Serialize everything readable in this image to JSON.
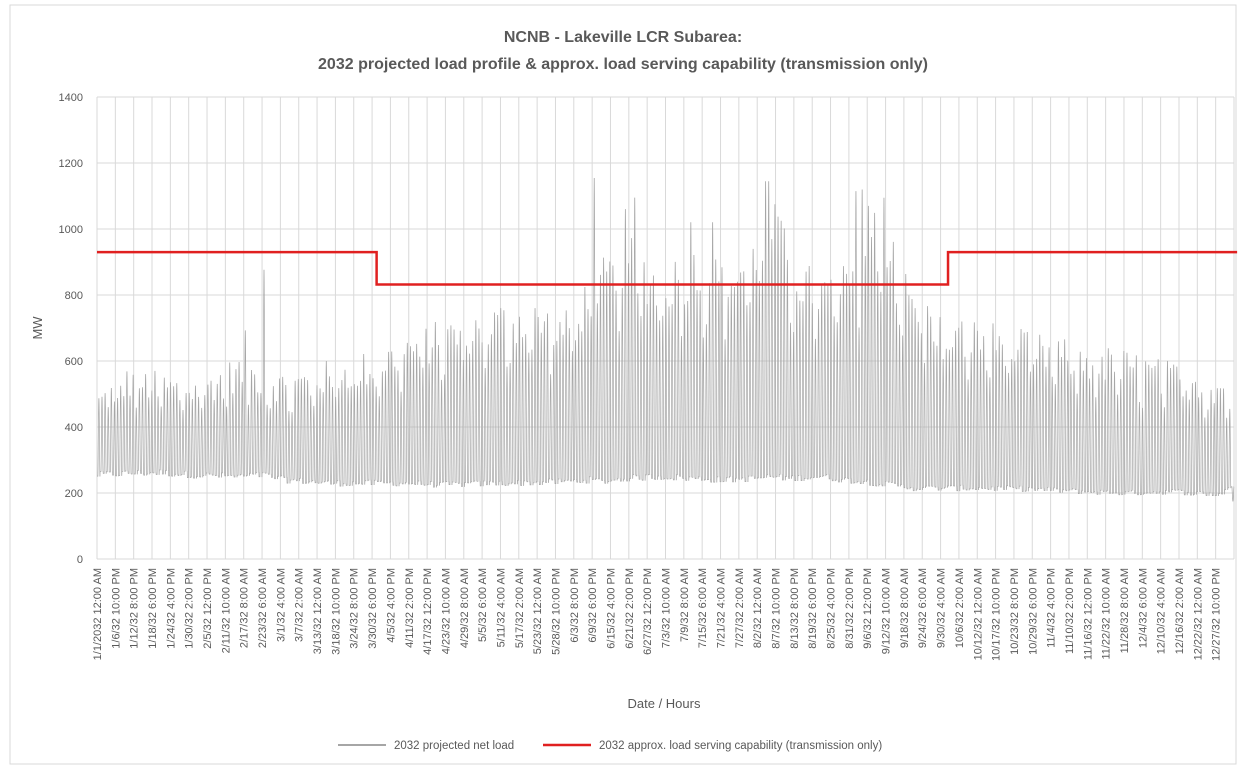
{
  "chart_data": {
    "type": "line",
    "title": "NCNB - Lakeville LCR Subarea:",
    "subtitle": "2032 projected load profile & approx. load serving capability (transmission only)",
    "xlabel": "Date / Hours",
    "ylabel": "MW",
    "ylim": [
      0,
      1400
    ],
    "yticks": [
      0,
      200,
      400,
      600,
      800,
      1000,
      1200,
      1400
    ],
    "grid": true,
    "legend_position": "bottom",
    "xlim_hours": [
      0,
      8759
    ],
    "x_tick_labels": [
      "1/1/2032 12:00 AM",
      "1/6/32 10:00 PM",
      "1/12/32 8:00 PM",
      "1/18/32 6:00 PM",
      "1/24/32 4:00 PM",
      "1/30/32 2:00 PM",
      "2/5/32 12:00 PM",
      "2/11/32 10:00 AM",
      "2/17/32 8:00 AM",
      "2/23/32 6:00 AM",
      "3/1/32 4:00 AM",
      "3/7/32 2:00 AM",
      "3/13/32 12:00 AM",
      "3/18/32 10:00 PM",
      "3/24/32 8:00 PM",
      "3/30/32 6:00 PM",
      "4/5/32 4:00 PM",
      "4/11/32 2:00 PM",
      "4/17/32 12:00 PM",
      "4/23/32 10:00 AM",
      "4/29/32 8:00 AM",
      "5/5/32 6:00 AM",
      "5/11/32 4:00 AM",
      "5/17/32 2:00 AM",
      "5/23/32 12:00 AM",
      "5/28/32 10:00 PM",
      "6/3/32 8:00 PM",
      "6/9/32 6:00 PM",
      "6/15/32 4:00 PM",
      "6/21/32 2:00 PM",
      "6/27/32 12:00 PM",
      "7/3/32 10:00 AM",
      "7/9/32 8:00 AM",
      "7/15/32 6:00 AM",
      "7/21/32 4:00 AM",
      "7/27/32 2:00 AM",
      "8/2/32 12:00 AM",
      "8/7/32 10:00 PM",
      "8/13/32 8:00 PM",
      "8/19/32 6:00 PM",
      "8/25/32 4:00 PM",
      "8/31/32 2:00 PM",
      "9/6/32 12:00 PM",
      "9/12/32 10:00 AM",
      "9/18/32 8:00 AM",
      "9/24/32 6:00 AM",
      "9/30/32 4:00 AM",
      "10/6/32 2:00 AM",
      "10/12/32 12:00 AM",
      "10/17/32 10:00 PM",
      "10/23/32 8:00 PM",
      "10/29/32 6:00 PM",
      "11/4/32 4:00 PM",
      "11/10/32 2:00 PM",
      "11/16/32 12:00 PM",
      "11/22/32 10:00 AM",
      "11/28/32 8:00 AM",
      "12/4/32 6:00 AM",
      "12/10/32 4:00 AM",
      "12/16/32 2:00 AM",
      "12/22/32 12:00 AM",
      "12/27/32 10:00 PM"
    ],
    "series": [
      {
        "name": "2032 projected net load",
        "color": "#a6a6a6",
        "style": "hourly profile; daily min/max envelope listed by day",
        "daily_envelope": {
          "x_unit": "days from 1/1/2032 12:00 AM",
          "days": [
            0,
            10,
            20,
            31,
            45,
            53,
            60,
            75,
            89,
            100,
            110,
            120,
            130,
            140,
            150,
            158,
            162,
            170,
            180,
            190,
            200,
            212,
            216,
            222,
            232,
            240,
            246,
            250,
            255,
            262,
            273,
            285,
            300,
            315,
            330,
            345,
            360,
            365
          ],
          "daily_min_mw": [
            255,
            260,
            262,
            255,
            250,
            255,
            240,
            230,
            230,
            230,
            225,
            228,
            230,
            232,
            235,
            240,
            235,
            245,
            250,
            245,
            240,
            245,
            250,
            245,
            250,
            240,
            235,
            230,
            225,
            215,
            215,
            215,
            212,
            205,
            200,
            205,
            195,
            230
          ],
          "daily_max_mw": [
            520,
            590,
            570,
            560,
            620,
            600,
            570,
            610,
            640,
            700,
            730,
            760,
            790,
            790,
            760,
            880,
            920,
            1000,
            900,
            960,
            920,
            1000,
            1140,
            950,
            880,
            900,
            1040,
            1100,
            950,
            830,
            740,
            730,
            690,
            660,
            640,
            600,
            570,
            540
          ]
        },
        "peaks": [
          {
            "x": "2/23/32",
            "y": 880
          },
          {
            "x": "2/17/32",
            "y": 695
          },
          {
            "x": "6/8/32",
            "y": 1160
          },
          {
            "x": "6/18/32",
            "y": 1065
          },
          {
            "x": "6/21/32",
            "y": 1100
          },
          {
            "x": "7/9/32",
            "y": 1025
          },
          {
            "x": "7/16/32",
            "y": 1025
          },
          {
            "x": "8/2/32",
            "y": 1150
          },
          {
            "x": "8/3/32",
            "y": 1150
          },
          {
            "x": "8/5/32",
            "y": 1080
          },
          {
            "x": "8/31/32",
            "y": 1120
          },
          {
            "x": "9/2/32",
            "y": 1125
          },
          {
            "x": "9/4/32",
            "y": 1075
          },
          {
            "x": "9/9/32",
            "y": 1100
          },
          {
            "x": "9/12/32",
            "y": 965
          },
          {
            "x": "12/30/32",
            "y": 175
          }
        ]
      },
      {
        "name": "2032 approx. load serving  capability (transmission only)",
        "color": "#e02020",
        "style": "step",
        "steps": [
          {
            "from": "1/1/2032 12:00 AM",
            "to": "3/30/32 6:00 PM",
            "y": 930
          },
          {
            "from": "3/30/32 6:00 PM",
            "to": "9/30/32 4:00 AM",
            "y": 832
          },
          {
            "from": "9/30/32 4:00 AM",
            "to": "12/31/32 11:00 PM",
            "y": 930
          }
        ]
      }
    ]
  }
}
